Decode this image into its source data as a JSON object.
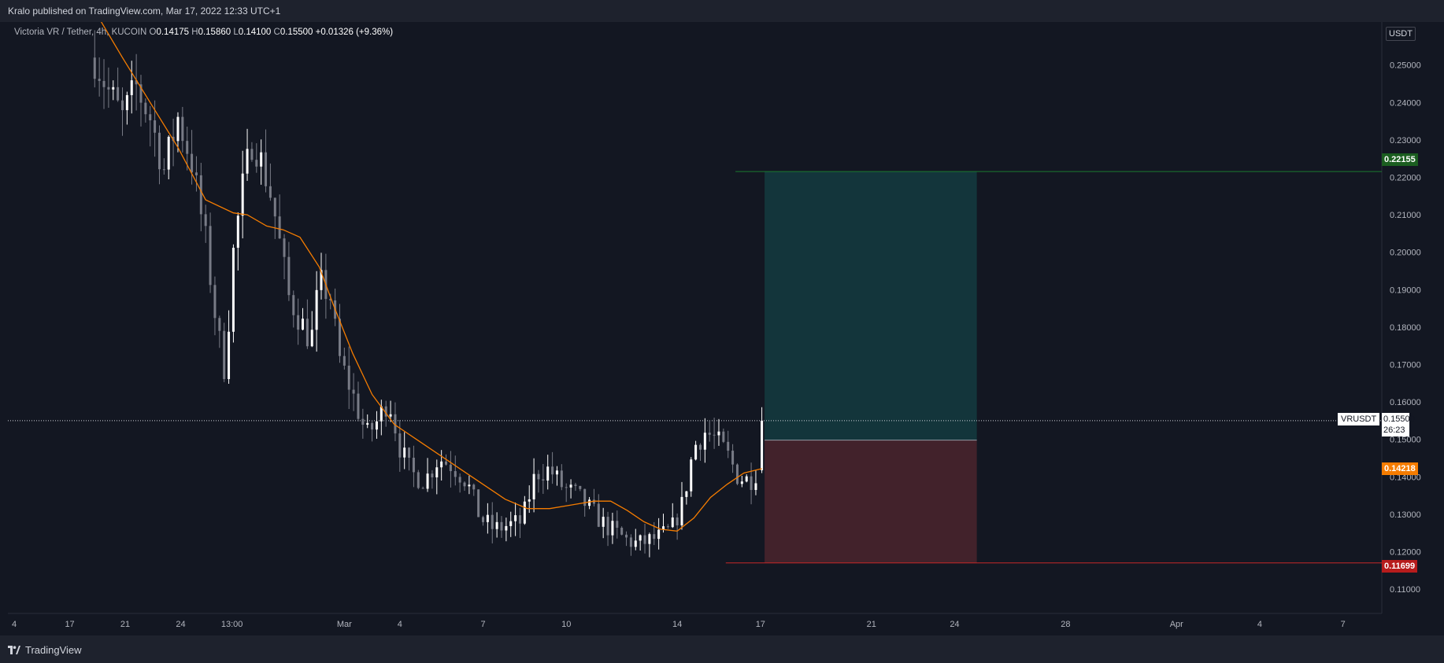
{
  "header": {
    "published": "Kralo published on TradingView.com, Mar 17, 2022 12:33 UTC+1"
  },
  "legend": {
    "symbol": "Victoria VR / Tether, 4h, KUCOIN",
    "o_label": "O",
    "o_value": "0.14175",
    "h_label": "H",
    "h_value": "0.15860",
    "l_label": "L",
    "l_value": "0.14100",
    "c_label": "C",
    "c_value": "0.15500",
    "change": "+0.01326 (+9.36%)"
  },
  "footer": {
    "brand": "TradingView"
  },
  "colors": {
    "background": "#131722",
    "bull": "#ffffff",
    "bear": "#787b86",
    "ma": "#f57c00",
    "target": "#1b5e20",
    "stop": "#b71c1c",
    "profit_zone": "#13353b",
    "loss_zone": "#42222b"
  },
  "chart_data": {
    "type": "candlestick",
    "title": "Victoria VR / Tether, 4h, KUCOIN",
    "currency": "USDT",
    "y_axis": {
      "ylim": [
        0.1035,
        0.2615
      ],
      "ticks": [
        "0.25000",
        "0.24000",
        "0.23000",
        "0.22000",
        "0.21000",
        "0.20000",
        "0.19000",
        "0.18000",
        "0.17000",
        "0.16000",
        "0.15000",
        "0.14000",
        "0.13000",
        "0.12000",
        "0.11000"
      ],
      "tick_values": [
        0.25,
        0.24,
        0.23,
        0.22,
        0.21,
        0.2,
        0.19,
        0.18,
        0.17,
        0.16,
        0.15,
        0.14,
        0.13,
        0.12,
        0.11
      ]
    },
    "x_axis": {
      "range_days": [
        -12.13,
        37.4
      ],
      "ticks": [
        {
          "label": "4",
          "day": -11.9
        },
        {
          "label": "17",
          "day": -9.9
        },
        {
          "label": "21",
          "day": -7.9
        },
        {
          "label": "24",
          "day": -5.9
        },
        {
          "label": "13:00",
          "day": -4.05
        },
        {
          "label": "Mar",
          "day": 0
        },
        {
          "label": "4",
          "day": 2
        },
        {
          "label": "7",
          "day": 5
        },
        {
          "label": "10",
          "day": 8
        },
        {
          "label": "14",
          "day": 12
        },
        {
          "label": "17",
          "day": 15
        },
        {
          "label": "21",
          "day": 19
        },
        {
          "label": "24",
          "day": 22
        },
        {
          "label": "28",
          "day": 26
        },
        {
          "label": "Apr",
          "day": 30
        },
        {
          "label": "4",
          "day": 33
        },
        {
          "label": "7",
          "day": 36
        }
      ]
    },
    "close_anchors": [
      [
        -9.0,
        0.252
      ],
      [
        -8.5,
        0.243
      ],
      [
        -8.0,
        0.236
      ],
      [
        -7.5,
        0.244
      ],
      [
        -7.0,
        0.236
      ],
      [
        -6.5,
        0.222
      ],
      [
        -6.0,
        0.236
      ],
      [
        -5.5,
        0.224
      ],
      [
        -5.0,
        0.203
      ],
      [
        -4.6,
        0.18
      ],
      [
        -4.3,
        0.168
      ],
      [
        -4.0,
        0.2
      ],
      [
        -3.7,
        0.216
      ],
      [
        -3.3,
        0.231
      ],
      [
        -2.9,
        0.222
      ],
      [
        -2.6,
        0.214
      ],
      [
        -2.3,
        0.201
      ],
      [
        -2.0,
        0.188
      ],
      [
        -1.6,
        0.182
      ],
      [
        -1.2,
        0.176
      ],
      [
        -0.9,
        0.192
      ],
      [
        -0.5,
        0.188
      ],
      [
        -0.2,
        0.172
      ],
      [
        0.3,
        0.162
      ],
      [
        0.8,
        0.151
      ],
      [
        1.2,
        0.155
      ],
      [
        1.6,
        0.161
      ],
      [
        2.0,
        0.148
      ],
      [
        2.4,
        0.141
      ],
      [
        2.9,
        0.139
      ],
      [
        3.4,
        0.145
      ],
      [
        3.9,
        0.143
      ],
      [
        4.4,
        0.139
      ],
      [
        4.9,
        0.129
      ],
      [
        5.4,
        0.126
      ],
      [
        5.9,
        0.127
      ],
      [
        6.4,
        0.128
      ],
      [
        6.9,
        0.141
      ],
      [
        7.4,
        0.142
      ],
      [
        7.9,
        0.137
      ],
      [
        8.4,
        0.135
      ],
      [
        8.9,
        0.131
      ],
      [
        9.4,
        0.127
      ],
      [
        9.8,
        0.125
      ],
      [
        10.2,
        0.123
      ],
      [
        10.6,
        0.122
      ],
      [
        11.0,
        0.123
      ],
      [
        11.4,
        0.124
      ],
      [
        11.8,
        0.126
      ],
      [
        12.2,
        0.133
      ],
      [
        12.6,
        0.148
      ],
      [
        13.0,
        0.152
      ],
      [
        13.4,
        0.15
      ],
      [
        13.8,
        0.146
      ],
      [
        14.2,
        0.14
      ],
      [
        14.6,
        0.139
      ],
      [
        14.9,
        0.1418
      ],
      [
        15.05,
        0.155
      ]
    ],
    "last_candle": {
      "day": 15.05,
      "open": 0.14175,
      "high": 0.1586,
      "low": 0.141,
      "close": 0.155
    },
    "moving_average": {
      "color": "#f57c00",
      "last_value": "0.14218",
      "points": [
        [
          -8.8,
          0.262
        ],
        [
          -8.0,
          0.252
        ],
        [
          -7.0,
          0.24
        ],
        [
          -6.0,
          0.228
        ],
        [
          -5.0,
          0.214
        ],
        [
          -4.0,
          0.2105
        ],
        [
          -3.5,
          0.21
        ],
        [
          -2.8,
          0.207
        ],
        [
          -2.2,
          0.206
        ],
        [
          -1.6,
          0.204
        ],
        [
          -0.9,
          0.196
        ],
        [
          -0.4,
          0.186
        ],
        [
          0.3,
          0.173
        ],
        [
          1.0,
          0.162
        ],
        [
          1.8,
          0.154
        ],
        [
          2.6,
          0.15
        ],
        [
          3.4,
          0.146
        ],
        [
          4.2,
          0.142
        ],
        [
          5.0,
          0.138
        ],
        [
          5.8,
          0.134
        ],
        [
          6.6,
          0.1315
        ],
        [
          7.4,
          0.1315
        ],
        [
          8.2,
          0.1325
        ],
        [
          9.0,
          0.1335
        ],
        [
          9.6,
          0.1335
        ],
        [
          10.2,
          0.131
        ],
        [
          10.8,
          0.128
        ],
        [
          11.4,
          0.126
        ],
        [
          12.0,
          0.1255
        ],
        [
          12.6,
          0.129
        ],
        [
          13.2,
          0.1345
        ],
        [
          13.8,
          0.138
        ],
        [
          14.4,
          0.141
        ],
        [
          15.05,
          0.14218
        ]
      ]
    },
    "current_price": {
      "value": 0.155,
      "label": "0.15500",
      "countdown": "26:23",
      "symbol_tag": "VRUSDT"
    },
    "position": {
      "type": "long",
      "entry": 0.1498,
      "target": 0.22155,
      "stop": 0.11699,
      "start_day": 15.15,
      "end_day": 22.8,
      "target_label": "0.22155",
      "stop_label": "0.11699",
      "target_line_start_day": 14.1,
      "stop_line_start_day": 13.75
    }
  }
}
